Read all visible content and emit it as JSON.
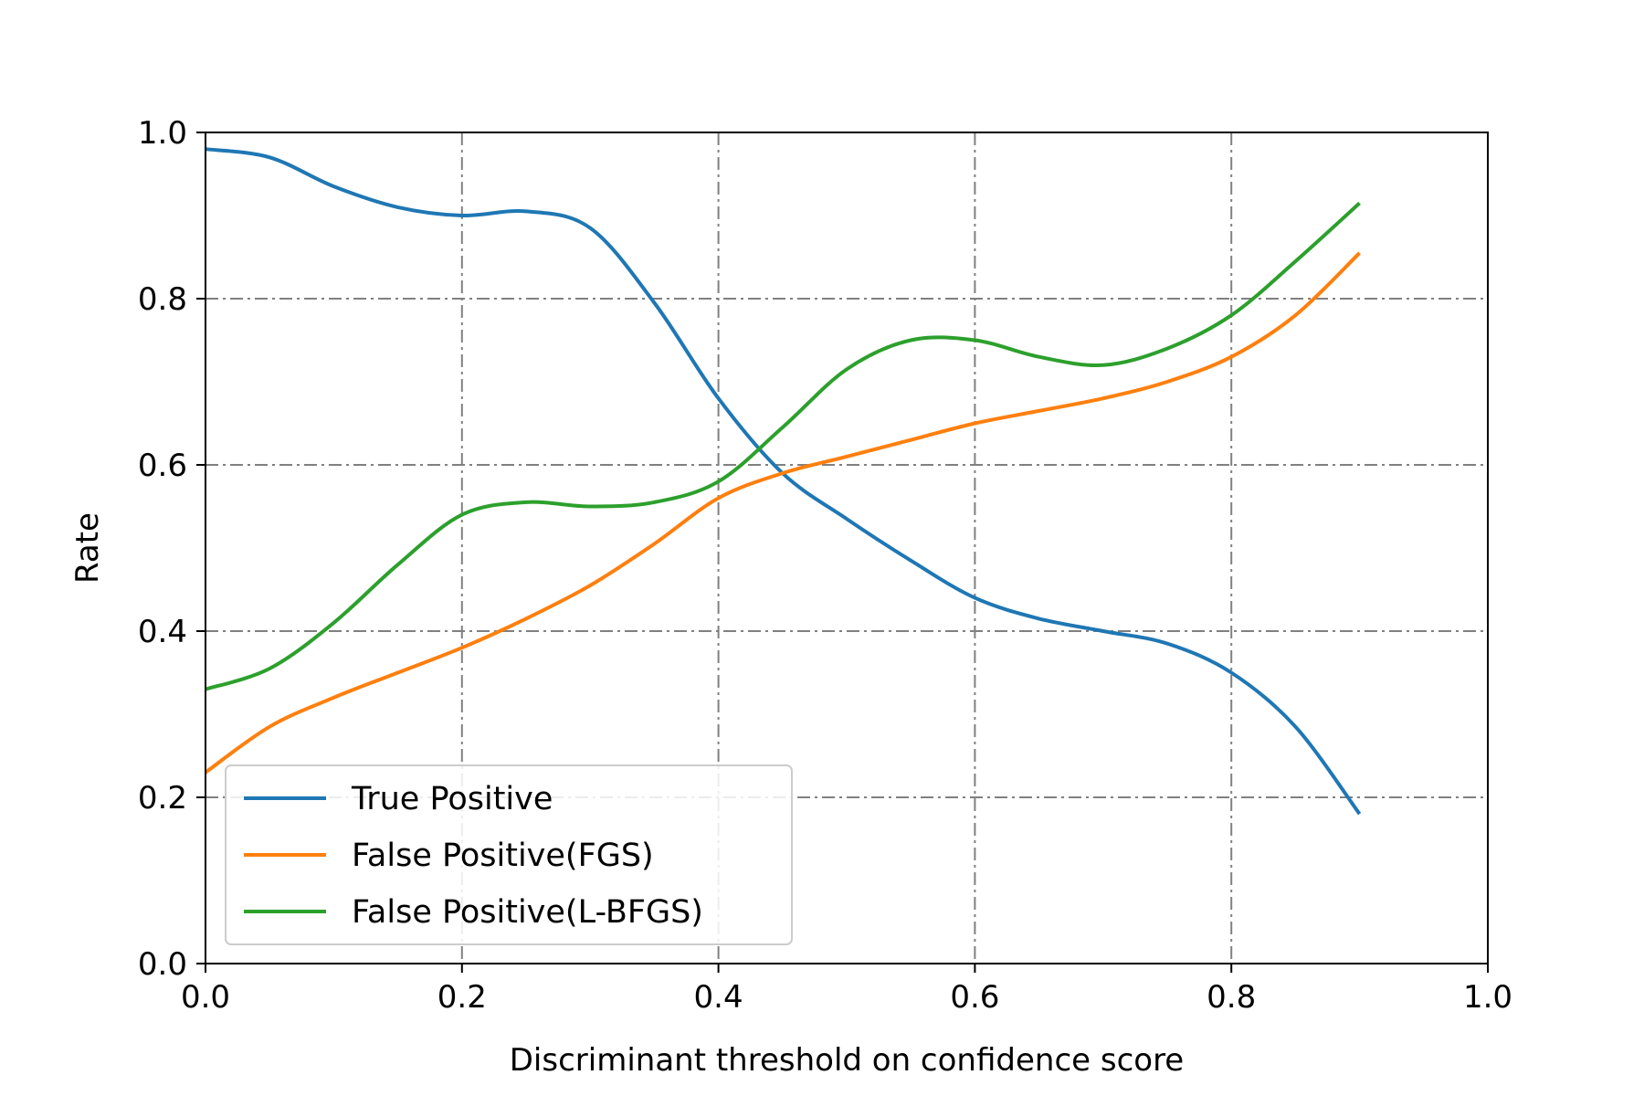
{
  "chart_data": {
    "type": "line",
    "title": "",
    "xlabel": "Discriminant threshold on confidence score",
    "ylabel": "Rate",
    "xlim": [
      0.0,
      1.0
    ],
    "ylim": [
      0.0,
      1.0
    ],
    "x_ticks": [
      "0.0",
      "0.2",
      "0.4",
      "0.6",
      "0.8",
      "1.0"
    ],
    "y_ticks": [
      "0.0",
      "0.2",
      "0.4",
      "0.6",
      "0.8",
      "1.0"
    ],
    "grid": true,
    "grid_style": "dash-dot",
    "legend_position": "lower-left",
    "x": [
      0.0,
      0.05,
      0.1,
      0.15,
      0.2,
      0.25,
      0.3,
      0.35,
      0.4,
      0.45,
      0.5,
      0.55,
      0.6,
      0.65,
      0.7,
      0.75,
      0.8,
      0.85,
      0.9
    ],
    "series": [
      {
        "name": "True Positive",
        "color": "#1f77b4",
        "values": [
          0.98,
          0.97,
          0.935,
          0.91,
          0.9,
          0.905,
          0.885,
          0.795,
          0.68,
          0.59,
          0.535,
          0.485,
          0.44,
          0.415,
          0.4,
          0.385,
          0.35,
          0.285,
          0.18
        ]
      },
      {
        "name": "False Positive(FGS)",
        "color": "#ff7f0e",
        "values": [
          0.23,
          0.285,
          0.32,
          0.35,
          0.38,
          0.415,
          0.455,
          0.505,
          0.56,
          0.59,
          0.61,
          0.63,
          0.65,
          0.665,
          0.68,
          0.7,
          0.73,
          0.78,
          0.855
        ]
      },
      {
        "name": "False Positive(L-BFGS)",
        "color": "#2ca02c",
        "values": [
          0.33,
          0.355,
          0.41,
          0.48,
          0.54,
          0.555,
          0.55,
          0.555,
          0.58,
          0.645,
          0.715,
          0.75,
          0.75,
          0.73,
          0.72,
          0.74,
          0.78,
          0.845,
          0.915
        ]
      }
    ]
  }
}
